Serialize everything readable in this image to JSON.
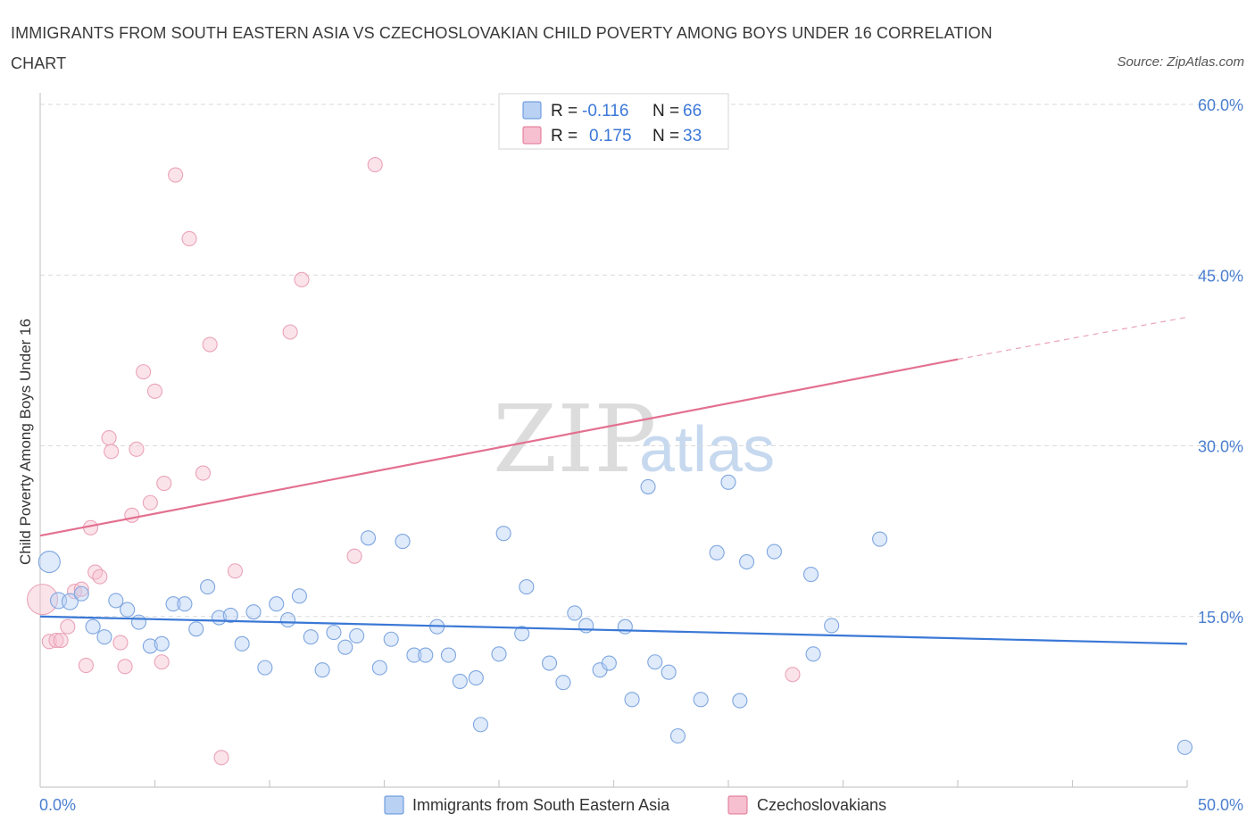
{
  "title": "IMMIGRANTS FROM SOUTH EASTERN ASIA VS CZECHOSLOVAKIAN CHILD POVERTY AMONG BOYS UNDER 16 CORRELATION CHART",
  "source": "Source: ZipAtlas.com",
  "watermark": {
    "zip": "ZIP",
    "atlas": "atlas"
  },
  "colors": {
    "blue": "#5b8fd9",
    "blue_fill": "#b9d1f3",
    "pink": "#e3708f",
    "pink_fill": "#f6c0d0",
    "axis_text": "#4a7fd0",
    "grid": "#d8d8d8"
  },
  "stats_legend": {
    "r_label": "R =",
    "n_label": "N =",
    "blue": {
      "r": "-0.116",
      "n": "66"
    },
    "pink": {
      "r": "0.175",
      "n": "33"
    }
  },
  "chart_data": {
    "type": "scatter",
    "title": "IMMIGRANTS FROM SOUTH EASTERN ASIA VS CZECHOSLOVAKIAN CHILD POVERTY AMONG BOYS UNDER 16 CORRELATION CHART",
    "ylabel": "Child Poverty Among Boys Under 16",
    "xlabel": "",
    "xlim": [
      0,
      50
    ],
    "ylim": [
      0,
      60
    ],
    "x_tick_labels": [
      "0.0%",
      "50.0%"
    ],
    "y_ticks": [
      15,
      30,
      45,
      60
    ],
    "y_tick_labels": [
      "15.0%",
      "30.0%",
      "45.0%",
      "60.0%"
    ],
    "grid": true,
    "legend": {
      "position": "bottom-center",
      "entries": [
        "Immigrants from South Eastern Asia",
        "Czechoslovakians"
      ]
    },
    "series": [
      {
        "name": "Immigrants from South Eastern Asia",
        "color": "#5b8fd9",
        "trend": {
          "x0": 0,
          "y0": 15.0,
          "x1": 50,
          "y1": 12.6
        },
        "points": [
          [
            0.4,
            19.8,
            12
          ],
          [
            0.8,
            16.4,
            9
          ],
          [
            1.3,
            16.3,
            9
          ],
          [
            1.8,
            17.0,
            8
          ],
          [
            2.3,
            14.1,
            8
          ],
          [
            2.8,
            13.2,
            8
          ],
          [
            3.3,
            16.4,
            8
          ],
          [
            3.8,
            15.6,
            8
          ],
          [
            4.3,
            14.5,
            8
          ],
          [
            4.8,
            12.4,
            8
          ],
          [
            5.3,
            12.6,
            8
          ],
          [
            5.8,
            16.1,
            8
          ],
          [
            6.3,
            16.1,
            8
          ],
          [
            6.8,
            13.9,
            8
          ],
          [
            7.3,
            17.6,
            8
          ],
          [
            7.8,
            14.9,
            8
          ],
          [
            8.3,
            15.1,
            8
          ],
          [
            8.8,
            12.6,
            8
          ],
          [
            9.3,
            15.4,
            8
          ],
          [
            9.8,
            10.5,
            8
          ],
          [
            10.3,
            16.1,
            8
          ],
          [
            10.8,
            14.7,
            8
          ],
          [
            11.3,
            16.8,
            8
          ],
          [
            11.8,
            13.2,
            8
          ],
          [
            12.3,
            10.3,
            8
          ],
          [
            12.8,
            13.6,
            8
          ],
          [
            13.3,
            12.3,
            8
          ],
          [
            13.8,
            13.3,
            8
          ],
          [
            14.3,
            21.9,
            8
          ],
          [
            14.8,
            10.5,
            8
          ],
          [
            15.3,
            13.0,
            8
          ],
          [
            15.8,
            21.6,
            8
          ],
          [
            16.3,
            11.6,
            8
          ],
          [
            16.8,
            11.6,
            8
          ],
          [
            17.3,
            14.1,
            8
          ],
          [
            17.8,
            11.6,
            8
          ],
          [
            18.3,
            9.3,
            8
          ],
          [
            19.0,
            9.6,
            8
          ],
          [
            19.2,
            5.5,
            8
          ],
          [
            20.0,
            11.7,
            8
          ],
          [
            20.2,
            22.3,
            8
          ],
          [
            21.0,
            13.5,
            8
          ],
          [
            21.2,
            17.6,
            8
          ],
          [
            22.2,
            10.9,
            8
          ],
          [
            22.8,
            9.2,
            8
          ],
          [
            23.3,
            15.3,
            8
          ],
          [
            23.8,
            14.2,
            8
          ],
          [
            24.4,
            10.3,
            8
          ],
          [
            24.8,
            10.9,
            8
          ],
          [
            25.5,
            14.1,
            8
          ],
          [
            25.8,
            7.7,
            8
          ],
          [
            26.5,
            26.4,
            8
          ],
          [
            26.8,
            11.0,
            8
          ],
          [
            27.4,
            10.1,
            8
          ],
          [
            27.8,
            4.5,
            8
          ],
          [
            28.8,
            7.7,
            8
          ],
          [
            29.5,
            20.6,
            8
          ],
          [
            30.0,
            26.8,
            8
          ],
          [
            30.5,
            7.6,
            8
          ],
          [
            30.8,
            19.8,
            8
          ],
          [
            32.0,
            20.7,
            8
          ],
          [
            33.6,
            18.7,
            8
          ],
          [
            33.7,
            11.7,
            8
          ],
          [
            34.5,
            14.2,
            8
          ],
          [
            36.6,
            21.8,
            8
          ],
          [
            49.9,
            3.5,
            8
          ]
        ]
      },
      {
        "name": "Czechoslovakians",
        "color": "#e3708f",
        "trend": {
          "x0": 0,
          "y0": 22.1,
          "x1": 40,
          "y1": 37.6
        },
        "trend_dashed": {
          "x0": 40,
          "y0": 37.6,
          "x1": 50,
          "y1": 41.3
        },
        "points": [
          [
            0.1,
            16.5,
            17
          ],
          [
            0.4,
            12.8,
            8
          ],
          [
            0.7,
            12.9,
            8
          ],
          [
            0.9,
            12.9,
            8
          ],
          [
            1.2,
            14.1,
            8
          ],
          [
            1.5,
            17.2,
            8
          ],
          [
            1.8,
            17.4,
            8
          ],
          [
            2.0,
            10.7,
            8
          ],
          [
            2.2,
            22.8,
            8
          ],
          [
            2.4,
            18.9,
            8
          ],
          [
            2.6,
            18.5,
            8
          ],
          [
            3.0,
            30.7,
            8
          ],
          [
            3.1,
            29.5,
            8
          ],
          [
            3.5,
            12.7,
            8
          ],
          [
            3.7,
            10.6,
            8
          ],
          [
            4.0,
            23.9,
            8
          ],
          [
            4.2,
            29.7,
            8
          ],
          [
            4.5,
            36.5,
            8
          ],
          [
            4.8,
            25.0,
            8
          ],
          [
            5.0,
            34.8,
            8
          ],
          [
            5.3,
            11.0,
            8
          ],
          [
            5.4,
            26.7,
            8
          ],
          [
            5.9,
            53.8,
            8
          ],
          [
            6.5,
            48.2,
            8
          ],
          [
            7.1,
            27.6,
            8
          ],
          [
            7.4,
            38.9,
            8
          ],
          [
            7.9,
            2.6,
            8
          ],
          [
            8.5,
            19.0,
            8
          ],
          [
            10.9,
            40.0,
            8
          ],
          [
            11.4,
            44.6,
            8
          ],
          [
            13.7,
            20.3,
            8
          ],
          [
            14.6,
            54.7,
            8
          ],
          [
            32.8,
            9.9,
            8
          ]
        ]
      }
    ]
  }
}
